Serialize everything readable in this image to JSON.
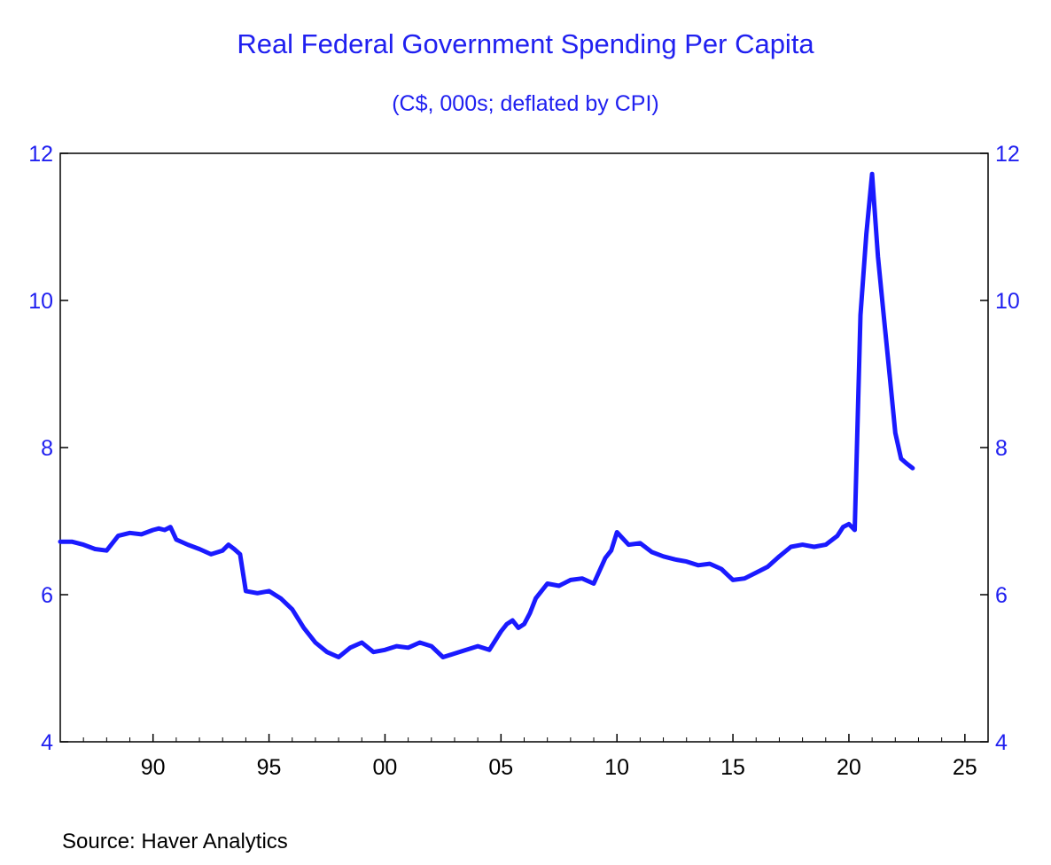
{
  "chart_data": {
    "type": "line",
    "title": "Real Federal Government Spending Per Capita",
    "subtitle": "(C$, 000s; deflated by CPI)",
    "xlim": [
      1986,
      2026
    ],
    "ylim": [
      4,
      12
    ],
    "yticks": [
      "4",
      "6",
      "8",
      "10",
      "12"
    ],
    "xticks": [
      {
        "value": 1990,
        "label": "90"
      },
      {
        "value": 1995,
        "label": "95"
      },
      {
        "value": 2000,
        "label": "00"
      },
      {
        "value": 2005,
        "label": "05"
      },
      {
        "value": 2010,
        "label": "10"
      },
      {
        "value": 2015,
        "label": "15"
      },
      {
        "value": 2020,
        "label": "20"
      },
      {
        "value": 2025,
        "label": "25"
      }
    ],
    "grid": false,
    "dual_y_axis": true,
    "series_color": "#1a1aff",
    "x": [
      1986.0,
      1986.5,
      1987.0,
      1987.5,
      1988.0,
      1988.5,
      1988.75,
      1989.0,
      1989.5,
      1990.0,
      1990.25,
      1990.5,
      1990.75,
      1991.0,
      1991.5,
      1992.0,
      1992.5,
      1993.0,
      1993.25,
      1993.5,
      1993.75,
      1994.0,
      1994.5,
      1995.0,
      1995.25,
      1995.5,
      1996.0,
      1996.5,
      1997.0,
      1997.5,
      1998.0,
      1998.5,
      1999.0,
      1999.5,
      2000.0,
      2000.5,
      2001.0,
      2001.5,
      2002.0,
      2002.5,
      2003.0,
      2003.5,
      2004.0,
      2004.5,
      2005.0,
      2005.25,
      2005.5,
      2005.75,
      2006.0,
      2006.25,
      2006.5,
      2007.0,
      2007.5,
      2008.0,
      2008.5,
      2009.0,
      2009.5,
      2009.75,
      2010.0,
      2010.5,
      2011.0,
      2011.5,
      2012.0,
      2012.5,
      2013.0,
      2013.5,
      2014.0,
      2014.5,
      2015.0,
      2015.5,
      2016.0,
      2016.5,
      2017.0,
      2017.5,
      2018.0,
      2018.5,
      2019.0,
      2019.5,
      2019.75,
      2020.0,
      2020.25,
      2020.5,
      2020.75,
      2021.0,
      2021.25,
      2021.5,
      2021.75,
      2022.0,
      2022.25,
      2022.5,
      2022.75
    ],
    "y": [
      6.72,
      6.72,
      6.68,
      6.62,
      6.6,
      6.8,
      6.82,
      6.84,
      6.82,
      6.88,
      6.9,
      6.88,
      6.92,
      6.75,
      6.68,
      6.62,
      6.55,
      6.6,
      6.68,
      6.62,
      6.55,
      6.05,
      6.02,
      6.05,
      6.0,
      5.95,
      5.8,
      5.55,
      5.35,
      5.22,
      5.15,
      5.28,
      5.35,
      5.22,
      5.25,
      5.3,
      5.28,
      5.35,
      5.3,
      5.15,
      5.2,
      5.25,
      5.3,
      5.25,
      5.5,
      5.6,
      5.65,
      5.55,
      5.6,
      5.75,
      5.95,
      6.15,
      6.12,
      6.2,
      6.22,
      6.15,
      6.5,
      6.6,
      6.85,
      6.68,
      6.7,
      6.58,
      6.52,
      6.48,
      6.45,
      6.4,
      6.42,
      6.35,
      6.2,
      6.22,
      6.3,
      6.38,
      6.52,
      6.65,
      6.68,
      6.65,
      6.68,
      6.8,
      6.92,
      6.96,
      6.88,
      9.8,
      10.9,
      11.72,
      10.6,
      9.8,
      9.0,
      8.2,
      7.85,
      7.78,
      7.72
    ],
    "source": "Source:  Haver Analytics"
  }
}
